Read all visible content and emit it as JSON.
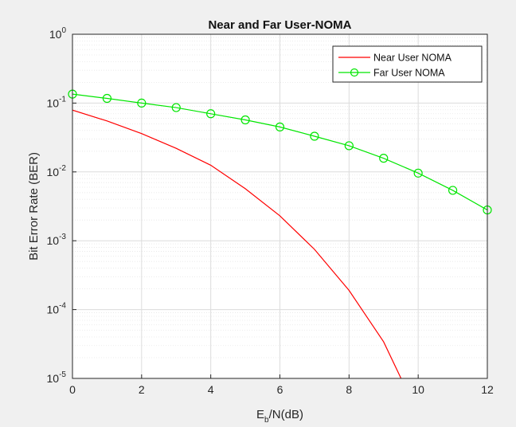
{
  "chart_data": {
    "type": "line",
    "title": "Near and Far User-NOMA",
    "xlabel": {
      "main": "E",
      "sub": "b",
      "rest": "/N(dB)"
    },
    "ylabel": "Bit Error Rate (BER)",
    "x_ticks": [
      "0",
      "2",
      "4",
      "6",
      "8",
      "10",
      "12"
    ],
    "y_ticks": [
      {
        "base": "10",
        "exp": "-5"
      },
      {
        "base": "10",
        "exp": "-4"
      },
      {
        "base": "10",
        "exp": "-3"
      },
      {
        "base": "10",
        "exp": "-2"
      },
      {
        "base": "10",
        "exp": "-1"
      },
      {
        "base": "10",
        "exp": "0"
      }
    ],
    "xlim": [
      0,
      12
    ],
    "ylim": [
      1e-05,
      1
    ],
    "y_scale": "log",
    "grid": true,
    "minor_grid": true,
    "legend_position": "top-right",
    "series": [
      {
        "name": "Near User NOMA",
        "color": "#ff0000",
        "marker": "none",
        "x": [
          0,
          1,
          2,
          3,
          4,
          5,
          6,
          7,
          8,
          9,
          10
        ],
        "y": [
          0.079,
          0.055,
          0.036,
          0.022,
          0.0125,
          0.0057,
          0.0023,
          0.00075,
          0.00019,
          3.4e-05,
          3e-06
        ]
      },
      {
        "name": "Far User NOMA",
        "color": "#00e600",
        "marker": "circle",
        "x": [
          0,
          1,
          2,
          3,
          4,
          5,
          6,
          7,
          8,
          9,
          10,
          11,
          12
        ],
        "y": [
          0.135,
          0.117,
          0.1,
          0.086,
          0.07,
          0.057,
          0.045,
          0.033,
          0.024,
          0.0158,
          0.0096,
          0.0054,
          0.0028
        ]
      }
    ]
  }
}
